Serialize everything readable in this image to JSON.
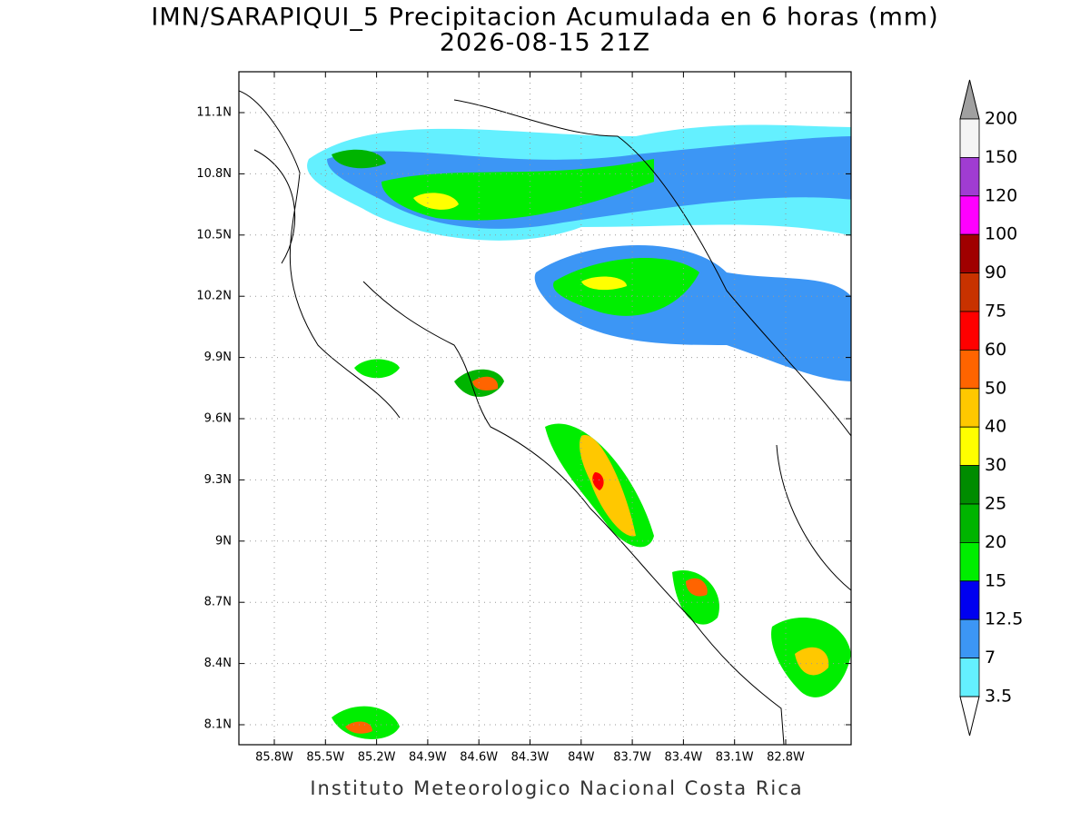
{
  "title": "IMN/SARAPIQUI_5 Precipitacion Acumulada en 6 horas (mm)",
  "subtitle": "2026-08-15 21Z",
  "lat_labels": [
    "11.1N",
    "10.8N",
    "10.5N",
    "10.2N",
    "9.9N",
    "9.6N",
    "9.3N",
    "9N",
    "8.7N",
    "8.4N",
    "8.1N"
  ],
  "lon_labels": [
    "85.8W",
    "85.5W",
    "85.2W",
    "84.9W",
    "84.6W",
    "84.3W",
    "84W",
    "83.7W",
    "83.4W",
    "83.1W",
    "82.8W"
  ],
  "colorbar": {
    "labels": [
      "200",
      "150",
      "120",
      "100",
      "90",
      "75",
      "60",
      "50",
      "40",
      "30",
      "25",
      "20",
      "15",
      "12.5",
      "7",
      "3.5"
    ],
    "colors": [
      "#f4f4f4",
      "#a03cd2",
      "#ff00ff",
      "#a00000",
      "#c83200",
      "#ff0000",
      "#ff6400",
      "#ffc800",
      "#ffff00",
      "#008c00",
      "#00b400",
      "#00ee00",
      "#0000f0",
      "#3c96f5",
      "#64f0ff"
    ],
    "over_color": "#a0a0a0",
    "under_color": "#ffffff"
  },
  "footer": "Instituto Meteorologico Nacional Costa Rica"
}
